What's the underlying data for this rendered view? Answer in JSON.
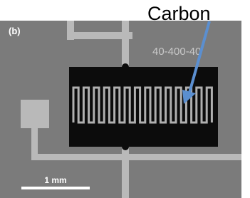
{
  "labels": {
    "panel": "(b)",
    "callout": "Carbon",
    "sample": "40-400-40",
    "scale_bar": "1 mm"
  }
}
